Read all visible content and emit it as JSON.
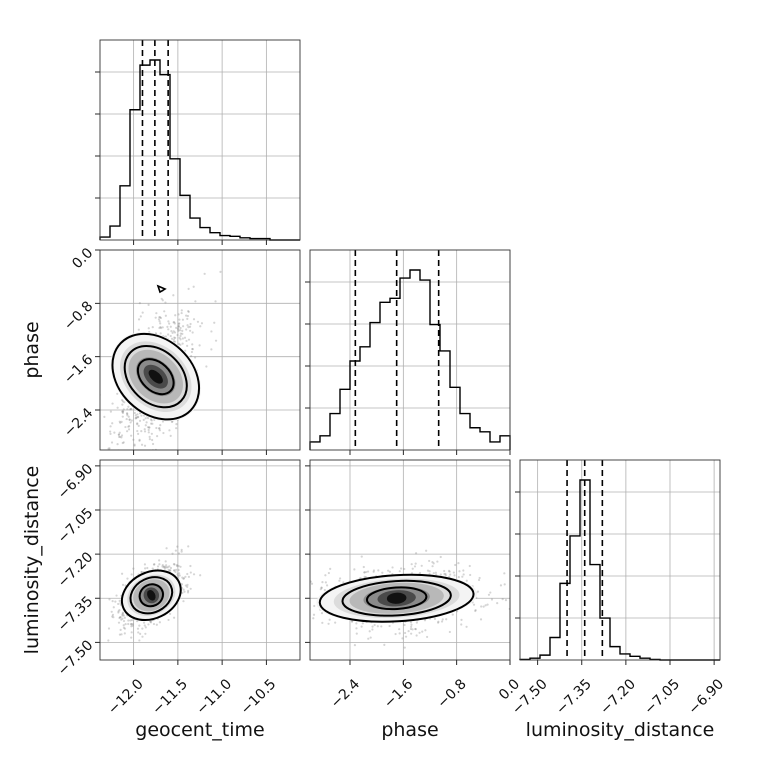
{
  "chart_data": {
    "type": "corner",
    "parameters": [
      "geocent_time",
      "phase",
      "luminosity_distance"
    ],
    "axes": {
      "geocent_time": {
        "label": "geocent_time",
        "ticks": [
          -12.0,
          -11.5,
          -11.0,
          -10.5
        ],
        "tick_labels": [
          "−12.0",
          "−11.5",
          "−11.0",
          "−10.5"
        ],
        "lim": [
          -12.38,
          -10.12
        ]
      },
      "phase": {
        "label": "phase",
        "ticks": [
          -2.4,
          -1.6,
          -0.8,
          0.0
        ],
        "tick_labels": [
          "−2.4",
          "−1.6",
          "−0.8",
          "0.0"
        ],
        "lim": [
          -3.0,
          0.0
        ]
      },
      "luminosity_distance": {
        "label": "luminosity_distance",
        "ticks": [
          -7.5,
          -7.35,
          -7.2,
          -7.05,
          -6.9
        ],
        "tick_labels": [
          "−7.50",
          "−7.35",
          "−7.20",
          "−7.05",
          "−6.90"
        ],
        "lim": [
          -7.56,
          -6.88
        ]
      }
    },
    "marginals": {
      "geocent_time": {
        "bin_edges": [
          -12.38,
          -12.267,
          -12.154,
          -12.041,
          -11.928,
          -11.815,
          -11.702,
          -11.589,
          -11.476,
          -11.363,
          -11.25,
          -11.137,
          -11.024,
          -10.911,
          -10.798,
          -10.685,
          -10.572,
          -10.459,
          -10.346,
          -10.233,
          -10.12
        ],
        "counts": [
          0.4,
          1.9,
          7.4,
          17.8,
          23.9,
          24.6,
          22.6,
          11.1,
          6.1,
          3.0,
          1.7,
          1.0,
          0.6,
          0.5,
          0.3,
          0.2,
          0.2,
          0,
          0,
          0
        ],
        "quantiles": [
          -11.9,
          -11.76,
          -11.61
        ]
      },
      "phase": {
        "bin_edges": [
          -3.0,
          -2.85,
          -2.7,
          -2.55,
          -2.4,
          -2.25,
          -2.1,
          -1.95,
          -1.8,
          -1.65,
          -1.5,
          -1.35,
          -1.2,
          -1.05,
          -0.9,
          -0.75,
          -0.6,
          -0.45,
          -0.3,
          -0.15,
          0.0
        ],
        "counts": [
          0.4,
          0.7,
          1.8,
          3.0,
          4.4,
          5.1,
          6.3,
          7.3,
          7.5,
          8.5,
          8.9,
          8.4,
          6.2,
          4.9,
          3.1,
          1.8,
          1.1,
          0.9,
          0.4,
          0.7
        ],
        "quantiles": [
          -2.32,
          -1.7,
          -1.07
        ]
      },
      "luminosity_distance": {
        "bin_edges": [
          -7.56,
          -7.526,
          -7.492,
          -7.458,
          -7.424,
          -7.39,
          -7.356,
          -7.322,
          -7.288,
          -7.254,
          -7.22,
          -7.186,
          -7.152,
          -7.118,
          -7.084,
          -7.05,
          -7.016,
          -6.982,
          -6.948,
          -6.914,
          -6.88
        ],
        "counts": [
          0.1,
          0.3,
          0.8,
          3.7,
          12.6,
          20.4,
          29.6,
          15.7,
          6.9,
          2.2,
          1.0,
          0.6,
          0.3,
          0.1,
          0,
          0,
          0,
          0,
          0,
          0
        ],
        "quantiles": [
          -7.4,
          -7.34,
          -7.28
        ]
      }
    },
    "joints": [
      {
        "x": "geocent_time",
        "y": "phase",
        "center": [
          -11.75,
          -1.9
        ],
        "sx": 0.18,
        "sy": 0.5,
        "rho": 0.6
      },
      {
        "x": "geocent_time",
        "y": "luminosity_distance",
        "center": [
          -11.8,
          -7.34
        ],
        "sx": 0.15,
        "sy": 0.05,
        "rho": 0.5
      },
      {
        "x": "phase",
        "y": "luminosity_distance",
        "center": [
          -1.7,
          -7.35
        ],
        "sx": 0.5,
        "sy": 0.05,
        "rho": 0.15
      }
    ],
    "grid": true,
    "legend": "none"
  }
}
